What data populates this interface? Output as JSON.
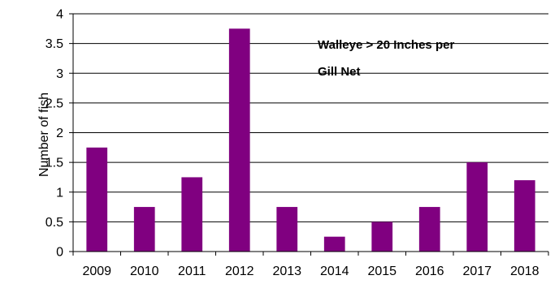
{
  "chart_data": {
    "type": "bar",
    "title_lines": [
      "Walleye > 20 Inches per",
      "Gill Net"
    ],
    "xlabel": "",
    "ylabel": "Number of fish",
    "categories": [
      "2009",
      "2010",
      "2011",
      "2012",
      "2013",
      "2014",
      "2015",
      "2016",
      "2017",
      "2018"
    ],
    "values": [
      1.75,
      0.75,
      1.25,
      3.75,
      0.75,
      0.25,
      0.5,
      0.75,
      1.5,
      1.2
    ],
    "ylim": [
      0,
      4
    ],
    "yticks": [
      0,
      0.5,
      1,
      1.5,
      2,
      2.5,
      3,
      3.5,
      4
    ],
    "ytick_labels": [
      "0",
      "0.5",
      "1",
      "1.5",
      "2",
      "2.5",
      "3",
      "3.5",
      "4"
    ],
    "grid": true,
    "colors": {
      "bar": "#800080",
      "grid": "#000000",
      "axis": "#000000"
    }
  }
}
